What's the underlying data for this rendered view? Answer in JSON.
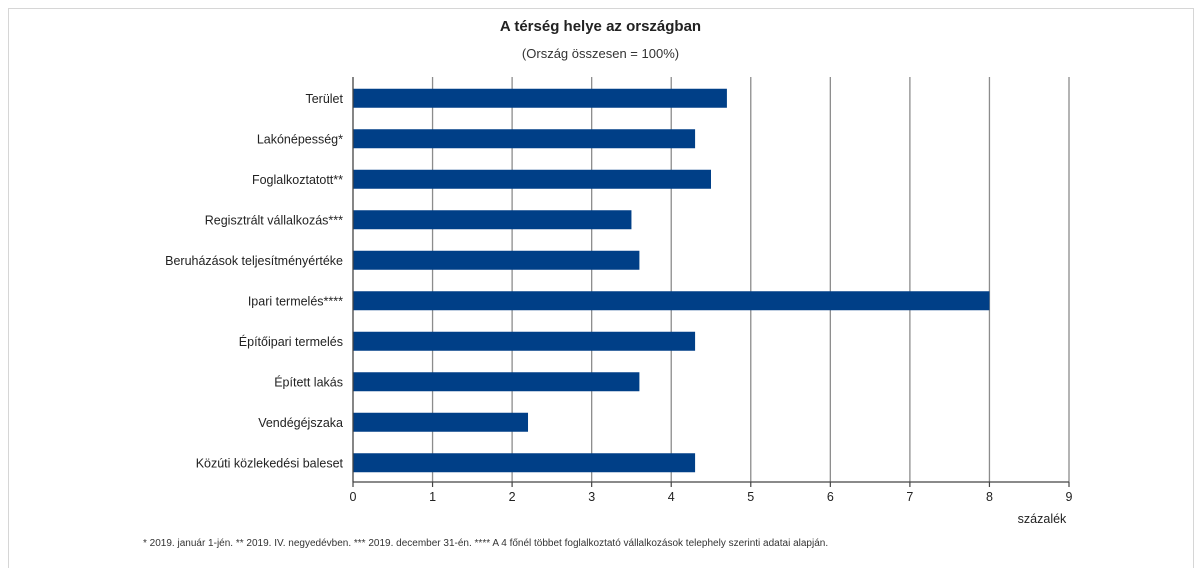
{
  "chart_data": {
    "type": "bar",
    "orientation": "horizontal",
    "title": "A térség helye az országban",
    "subtitle": "(Ország összesen = 100%)",
    "xlabel": "százalék",
    "categories": [
      "Terület",
      "Lakónépesség*",
      "Foglalkoztatott**",
      "Regisztrált vállalkozás***",
      "Beruházások teljesítményértéke",
      "Ipari termelés****",
      "Építőipari termelés",
      "Épített lakás",
      "Vendégéjszaka",
      "Közúti közlekedési baleset"
    ],
    "values": [
      4.7,
      4.3,
      4.5,
      3.5,
      3.6,
      8.0,
      4.3,
      3.6,
      2.2,
      4.3
    ],
    "xlim": [
      0,
      9
    ],
    "xticks": [
      "0",
      "1",
      "2",
      "3",
      "4",
      "5",
      "6",
      "7",
      "8",
      "9"
    ],
    "grid": true,
    "colors": {
      "bar": "#003f87",
      "grid": "#8c8c8c"
    }
  },
  "footnote": "* 2019. január 1-jén. ** 2019. IV. negyedévben. *** 2019. december 31-én. **** A 4 főnél többet foglalkoztató vállalkozások telephely szerinti adatai alapján."
}
